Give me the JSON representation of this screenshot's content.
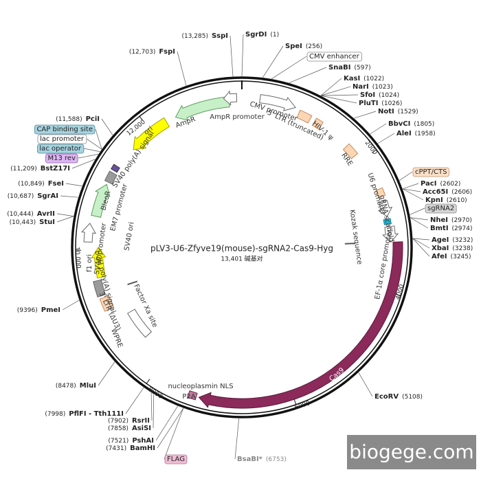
{
  "title": "pLV3-U6-Zfyve19(mouse)-sgRNA2-Cas9-Hyg",
  "length": "13,401 碱基对",
  "sites": [
    {
      "name": "SspI",
      "position": "(13,285)"
    },
    {
      "name": "SgrDI",
      "position": "(1)"
    },
    {
      "name": "SpeI",
      "position": "(256)"
    },
    {
      "name": "SnaBI",
      "position": "(597)"
    },
    {
      "name": "KasI",
      "position": "(1022)"
    },
    {
      "name": "NarI",
      "position": "(1023)"
    },
    {
      "name": "SfoI",
      "position": "(1024)"
    },
    {
      "name": "PluTI",
      "position": "(1026)"
    },
    {
      "name": "NotI",
      "position": "(1529)"
    },
    {
      "name": "BbvCI",
      "position": "(1805)"
    },
    {
      "name": "AleI",
      "position": "(1958)"
    },
    {
      "name": "PacI",
      "position": "(2602)"
    },
    {
      "name": "Acc65I",
      "position": "(2606)"
    },
    {
      "name": "KpnI",
      "position": "(2610)"
    },
    {
      "name": "NheI",
      "position": "(2970)"
    },
    {
      "name": "BmtI",
      "position": "(2974)"
    },
    {
      "name": "AgeI",
      "position": "(3232)"
    },
    {
      "name": "XbaI",
      "position": "(3238)"
    },
    {
      "name": "AfeI",
      "position": "(3245)"
    },
    {
      "name": "EcoRV",
      "position": "(5108)"
    },
    {
      "name": "BsaBI*",
      "position": "(6753)"
    },
    {
      "name": "BamHI",
      "position": "(7431)"
    },
    {
      "name": "PshAI",
      "position": "(7521)"
    },
    {
      "name": "AsiSI",
      "position": "(7858)"
    },
    {
      "name": "RsrII",
      "position": "(7902)"
    },
    {
      "name": "PflFI - Tth111I",
      "position": "(7998)"
    },
    {
      "name": "MluI",
      "position": "(8478)"
    },
    {
      "name": "PmeI",
      "position": "(9396)"
    },
    {
      "name": "AvrII",
      "position": "(10,444)"
    },
    {
      "name": "StuI",
      "position": "(10,443)"
    },
    {
      "name": "SgrAI",
      "position": "(10,687)"
    },
    {
      "name": "FseI",
      "position": "(10,849)"
    },
    {
      "name": "BstZ17I",
      "position": "(11,209)"
    },
    {
      "name": "PciI",
      "position": "(11,588)"
    },
    {
      "name": "FspI",
      "position": "(12,703)"
    }
  ],
  "boxed_labels": [
    "CMV enhancer",
    "cPPT/CTS",
    "sgRNA2",
    "FLAG",
    "CAP binding site",
    "lac promoter",
    "lac operator",
    "M13 rev"
  ],
  "features": [
    "AmpR",
    "AmpR promoter",
    "CMV promoter",
    "5' LTR (truncated)",
    "HIV-1 ψ",
    "RRE",
    "U6 promoter",
    "gRNA scaffold",
    "Kozak sequence",
    "EF-1α core promoter",
    "Cas9",
    "nucleoplasmin NLS",
    "P2A",
    "WPRE",
    "3' LTR (ΔU3)",
    "Factor Xa site",
    "bGH poly(A) signal",
    "f1 ori",
    "SV40 promoter",
    "SV40 ori",
    "EM7 promoter",
    "BleoR",
    "SV40 poly(A) signal",
    "ori"
  ],
  "ticks": [
    "2000",
    "4000",
    "6000",
    "8000",
    "10,000",
    "12,000"
  ],
  "watermark": "biogege.com"
}
